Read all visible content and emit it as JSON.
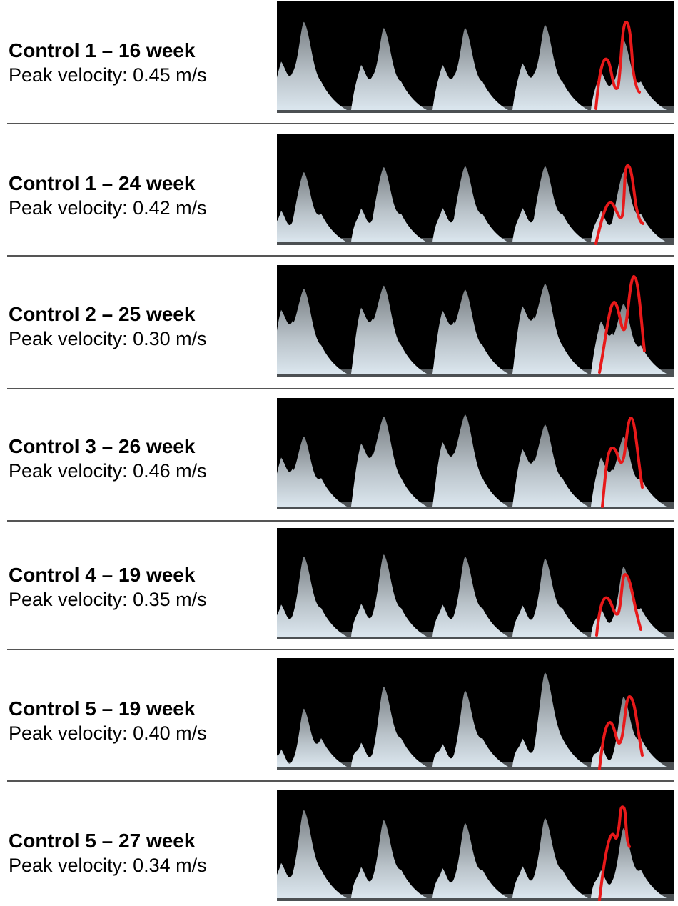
{
  "rows": [
    {
      "title": "Control 1 – 16 week",
      "velocity": "Peak velocity: 0.45 m/s"
    },
    {
      "title": "Control 1 – 24 week",
      "velocity": "Peak velocity: 0.42 m/s"
    },
    {
      "title": "Control 2 – 25 week",
      "velocity": "Peak velocity: 0.30 m/s"
    },
    {
      "title": "Control 3 – 26 week",
      "velocity": "Peak velocity: 0.46 m/s"
    },
    {
      "title": "Control 4 – 19 week",
      "velocity": "Peak velocity: 0.35 m/s"
    },
    {
      "title": "Control 5 – 19 week",
      "velocity": "Peak velocity: 0.40 m/s"
    },
    {
      "title": "Control 5 – 27 week",
      "velocity": "Peak velocity: 0.34 m/s"
    }
  ],
  "colors": {
    "trace": "#e8191a",
    "waveform": "#dbe6ee",
    "background": "#000000"
  }
}
